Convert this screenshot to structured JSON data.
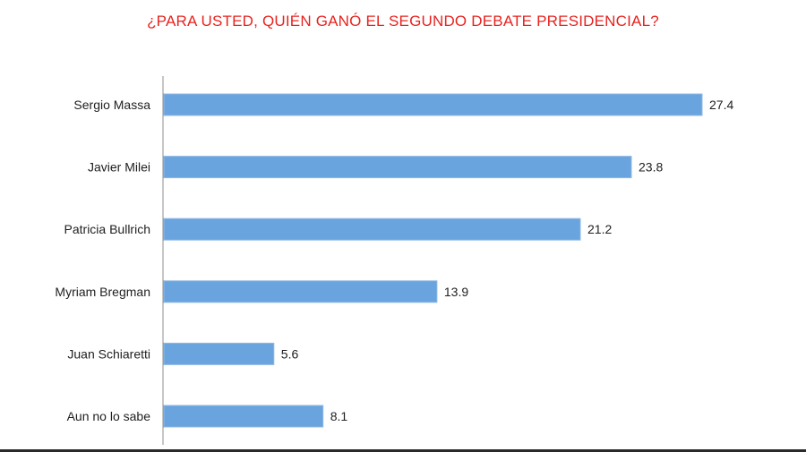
{
  "chart_data": {
    "type": "bar",
    "orientation": "horizontal",
    "title": "¿PARA USTED, QUIÉN GANÓ EL SEGUNDO DEBATE PRESIDENCIAL?",
    "categories": [
      "Sergio Massa",
      "Javier Milei",
      "Patricia Bullrich",
      "Myriam Bregman",
      "Juan Schiaretti",
      "Aun no lo sabe"
    ],
    "values": [
      27.4,
      23.8,
      21.2,
      13.9,
      5.6,
      8.1
    ],
    "value_labels": [
      "27.4",
      "23.8",
      "21.2",
      "13.9",
      "5.6",
      "8.1"
    ],
    "xlim": [
      0,
      27.4
    ],
    "grid": false,
    "legend": "none"
  },
  "colors": {
    "title": "#e8231f",
    "bar": "#6aa4de",
    "axis": "#8c8c8c",
    "text": "#1f1f1f"
  }
}
